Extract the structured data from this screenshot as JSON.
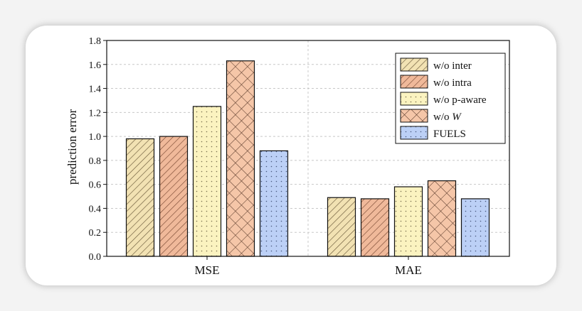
{
  "chart_data": {
    "type": "bar",
    "categories": [
      "MSE",
      "MAE"
    ],
    "ylabel": "prediction error",
    "xlabel": "",
    "ylim": [
      0,
      1.8
    ],
    "yticks": [
      "0.0",
      "0.2",
      "0.4",
      "0.6",
      "0.8",
      "1.0",
      "1.2",
      "1.4",
      "1.6",
      "1.8"
    ],
    "series": [
      {
        "name": "w/o inter",
        "values": [
          0.98,
          0.49
        ],
        "color": "#f2e2b3",
        "pattern": "diag"
      },
      {
        "name": "w/o intra",
        "values": [
          1.0,
          0.48
        ],
        "color": "#f0b99a",
        "pattern": "diag"
      },
      {
        "name": "w/o p-aware",
        "values": [
          1.25,
          0.58
        ],
        "color": "#fbf3c0",
        "pattern": "dots"
      },
      {
        "name": "w/o W",
        "values": [
          1.63,
          0.63
        ],
        "color": "#f5c6a8",
        "pattern": "cross"
      },
      {
        "name": "FUELS",
        "values": [
          0.88,
          0.48
        ],
        "color": "#bcd0f6",
        "pattern": "dots"
      }
    ],
    "legend_position": "top-right",
    "grid": true
  }
}
